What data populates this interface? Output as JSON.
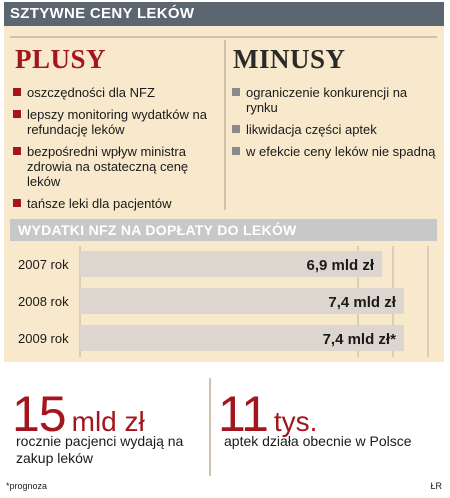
{
  "header": {
    "title": "SZTYWNE CENY LEKÓW"
  },
  "plusy": {
    "title": "PLUSY",
    "items": [
      "oszczędności dla NFZ",
      "lepszy monitoring wydatków na refundację leków",
      "bezpośredni wpływ ministra zdrowia na ostateczną cenę leków",
      "tańsze leki dla pacjentów"
    ]
  },
  "minusy": {
    "title": "MINUSY",
    "items": [
      "ograniczenie konkurencji na rynku",
      "likwidacja części aptek",
      "w efekcie ceny leków nie spadną"
    ]
  },
  "chart_data": {
    "type": "bar",
    "orientation": "horizontal",
    "title": "WYDATKI NFZ NA DOPŁATY DO LEKÓW",
    "categories": [
      "2007 rok",
      "2008 rok",
      "2009 rok"
    ],
    "values": [
      6.9,
      7.4,
      7.4
    ],
    "data_labels": [
      "6,9 mld zł",
      "7,4 mld zł",
      "7,4 mld zł*"
    ],
    "xlim": [
      0,
      7.95
    ],
    "grid": true,
    "bar_color": "#dcd6ce",
    "panel_color": "#f8e9cc"
  },
  "stats": {
    "left": {
      "number": "15",
      "unit": "mld zł",
      "caption": "rocznie pacjenci wydają na zakup leków"
    },
    "right": {
      "number": "11",
      "unit": "tys.",
      "caption": "aptek działa obecnie w Polsce"
    }
  },
  "footnote": "*prognoza",
  "credit": "ŁR",
  "colors": {
    "accent": "#a3161d",
    "header_bg": "#5b6670",
    "panel_bg": "#f8e9cc"
  }
}
